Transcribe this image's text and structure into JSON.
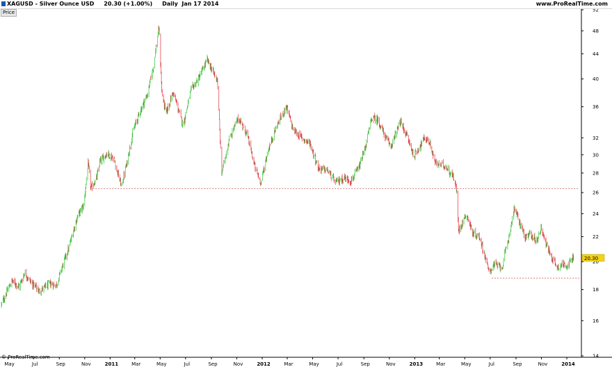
{
  "header": {
    "title": "XAGUSD - Silver Ounce USD     20.30 (+1.00%)     Daily  Jan 17 2014",
    "site": "www.ProRealTime.com",
    "price_tab": "Price",
    "watermark": "© ProRealTime.com"
  },
  "colors": {
    "up": "#2fc02f",
    "down": "#e0303a",
    "price_tag": "#f2d21a",
    "support": "#c04a4a"
  },
  "chart_data": {
    "type": "candlestick",
    "symbol": "XAGUSD",
    "name": "Silver Ounce USD",
    "last": "20.30",
    "change": "(+1.00%)",
    "period": "Daily",
    "date": "Jan 17 2014",
    "y_scale": "log",
    "ylim": [
      14,
      52
    ],
    "y_ticks": [
      14,
      16,
      18,
      20,
      22,
      24,
      26,
      28,
      30,
      32,
      36,
      40,
      44,
      48,
      52
    ],
    "x_range": [
      "2010-04-15",
      "2014-01-31"
    ],
    "x_ticks": [
      {
        "date": "2010-05-01",
        "label": "May"
      },
      {
        "date": "2010-07-01",
        "label": "Jul"
      },
      {
        "date": "2010-09-01",
        "label": "Sep"
      },
      {
        "date": "2010-11-01",
        "label": "Nov"
      },
      {
        "date": "2011-01-01",
        "label": "2011",
        "bold": true
      },
      {
        "date": "2011-03-01",
        "label": "Mar"
      },
      {
        "date": "2011-05-01",
        "label": "May"
      },
      {
        "date": "2011-07-01",
        "label": "Jul"
      },
      {
        "date": "2011-09-01",
        "label": "Sep"
      },
      {
        "date": "2011-11-01",
        "label": "Nov"
      },
      {
        "date": "2012-01-01",
        "label": "2012",
        "bold": true
      },
      {
        "date": "2012-03-01",
        "label": "Mar"
      },
      {
        "date": "2012-05-01",
        "label": "May"
      },
      {
        "date": "2012-07-01",
        "label": "Jul"
      },
      {
        "date": "2012-09-01",
        "label": "Sep"
      },
      {
        "date": "2012-11-01",
        "label": "Nov"
      },
      {
        "date": "2013-01-01",
        "label": "2013",
        "bold": true
      },
      {
        "date": "2013-03-01",
        "label": "Mar"
      },
      {
        "date": "2013-05-01",
        "label": "May"
      },
      {
        "date": "2013-07-01",
        "label": "Jul"
      },
      {
        "date": "2013-09-01",
        "label": "Sep"
      },
      {
        "date": "2013-11-01",
        "label": "Nov"
      },
      {
        "date": "2014-01-01",
        "label": "2014",
        "bold": true
      }
    ],
    "price_path": [
      [
        "2010-04-15",
        17.0
      ],
      [
        "2010-05-10",
        18.6
      ],
      [
        "2010-05-28",
        18.2
      ],
      [
        "2010-06-10",
        19.2
      ],
      [
        "2010-06-25",
        18.5
      ],
      [
        "2010-07-15",
        17.9
      ],
      [
        "2010-08-10",
        18.4
      ],
      [
        "2010-08-25",
        18.3
      ],
      [
        "2010-09-10",
        19.8
      ],
      [
        "2010-09-25",
        21.2
      ],
      [
        "2010-10-15",
        23.8
      ],
      [
        "2010-10-30",
        24.8
      ],
      [
        "2010-11-09",
        29.0
      ],
      [
        "2010-11-16",
        26.4
      ],
      [
        "2010-11-30",
        27.5
      ],
      [
        "2010-12-07",
        29.2
      ],
      [
        "2010-12-25",
        30.2
      ],
      [
        "2011-01-10",
        29.5
      ],
      [
        "2011-01-28",
        26.6
      ],
      [
        "2011-02-10",
        29.0
      ],
      [
        "2011-02-25",
        32.8
      ],
      [
        "2011-03-15",
        35.5
      ],
      [
        "2011-04-01",
        37.8
      ],
      [
        "2011-04-15",
        42.0
      ],
      [
        "2011-04-28",
        48.5
      ],
      [
        "2011-05-05",
        38.0
      ],
      [
        "2011-05-15",
        35.0
      ],
      [
        "2011-06-01",
        38.0
      ],
      [
        "2011-06-25",
        33.5
      ],
      [
        "2011-07-15",
        38.5
      ],
      [
        "2011-08-01",
        40.0
      ],
      [
        "2011-08-22",
        43.0
      ],
      [
        "2011-09-05",
        41.0
      ],
      [
        "2011-09-15",
        40.0
      ],
      [
        "2011-09-23",
        30.5
      ],
      [
        "2011-09-26",
        28.0
      ],
      [
        "2011-10-15",
        32.0
      ],
      [
        "2011-11-05",
        34.5
      ],
      [
        "2011-11-25",
        32.5
      ],
      [
        "2011-12-15",
        28.5
      ],
      [
        "2011-12-29",
        27.0
      ],
      [
        "2012-01-15",
        30.5
      ],
      [
        "2012-02-05",
        33.5
      ],
      [
        "2012-02-28",
        36.0
      ],
      [
        "2012-03-15",
        33.0
      ],
      [
        "2012-04-05",
        32.0
      ],
      [
        "2012-04-25",
        31.3
      ],
      [
        "2012-05-15",
        28.5
      ],
      [
        "2012-06-05",
        28.3
      ],
      [
        "2012-06-25",
        27.0
      ],
      [
        "2012-07-15",
        27.5
      ],
      [
        "2012-08-01",
        27.2
      ],
      [
        "2012-08-20",
        28.5
      ],
      [
        "2012-09-05",
        31.0
      ],
      [
        "2012-09-20",
        34.5
      ],
      [
        "2012-10-05",
        34.2
      ],
      [
        "2012-10-25",
        31.8
      ],
      [
        "2012-11-05",
        31.0
      ],
      [
        "2012-11-28",
        34.0
      ],
      [
        "2012-12-15",
        32.0
      ],
      [
        "2012-12-30",
        29.8
      ],
      [
        "2013-01-25",
        32.0
      ],
      [
        "2013-02-05",
        31.5
      ],
      [
        "2013-02-20",
        29.0
      ],
      [
        "2013-03-15",
        28.8
      ],
      [
        "2013-04-05",
        27.5
      ],
      [
        "2013-04-12",
        26.0
      ],
      [
        "2013-04-16",
        22.5
      ],
      [
        "2013-05-05",
        24.0
      ],
      [
        "2013-05-20",
        22.3
      ],
      [
        "2013-06-05",
        22.0
      ],
      [
        "2013-06-20",
        20.3
      ],
      [
        "2013-06-28",
        19.2
      ],
      [
        "2013-07-10",
        19.8
      ],
      [
        "2013-07-30",
        19.6
      ],
      [
        "2013-08-15",
        22.0
      ],
      [
        "2013-08-28",
        24.5
      ],
      [
        "2013-09-10",
        23.2
      ],
      [
        "2013-09-25",
        21.8
      ],
      [
        "2013-10-05",
        22.3
      ],
      [
        "2013-10-20",
        21.6
      ],
      [
        "2013-11-01",
        22.8
      ],
      [
        "2013-11-12",
        21.4
      ],
      [
        "2013-11-25",
        20.4
      ],
      [
        "2013-12-10",
        19.6
      ],
      [
        "2013-12-20",
        19.8
      ],
      [
        "2014-01-05",
        19.8
      ],
      [
        "2014-01-17",
        20.3
      ]
    ],
    "support_lines": [
      {
        "from": "2010-11-20",
        "to": "2014-01-31",
        "price": 26.4
      },
      {
        "from": "2013-07-05",
        "to": "2014-01-31",
        "price": 18.8
      }
    ],
    "last_price_label": "20.30"
  }
}
